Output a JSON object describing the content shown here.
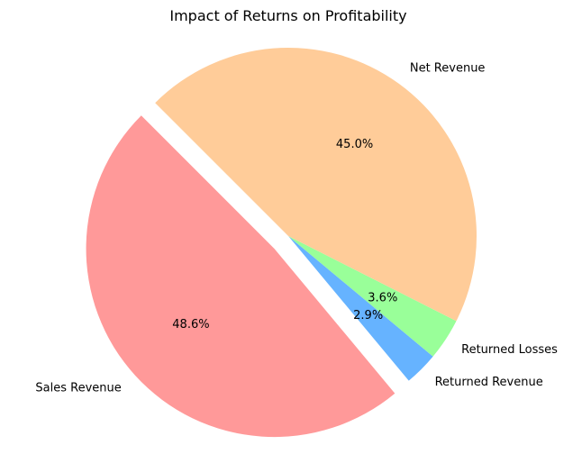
{
  "chart_data": {
    "type": "pie",
    "title": "Impact of Returns on Profitability",
    "start_angle_deg": 135,
    "direction": "counterclockwise",
    "slices": [
      {
        "label": "Sales Revenue",
        "value": 48.6,
        "pct_label": "48.6%",
        "color": "#ff9999",
        "explode": 0.1
      },
      {
        "label": "Returned Revenue",
        "value": 2.9,
        "pct_label": "2.9%",
        "color": "#66b3ff",
        "explode": 0
      },
      {
        "label": "Returned Losses",
        "value": 3.6,
        "pct_label": "3.6%",
        "color": "#99ff99",
        "explode": 0
      },
      {
        "label": "Net Revenue",
        "value": 45.0,
        "pct_label": "45.0%",
        "color": "#ffcc99",
        "explode": 0
      }
    ]
  }
}
